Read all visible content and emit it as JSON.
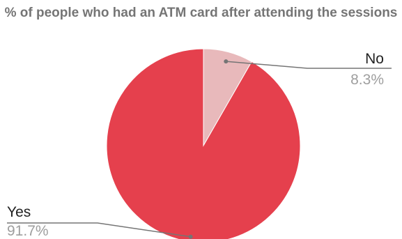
{
  "chart_data": {
    "type": "pie",
    "title": "% of people who had an ATM card after attending the sessions",
    "slices": [
      {
        "label": "No",
        "value": 8.3,
        "value_label": "8.3%",
        "color": "#e8b9bb"
      },
      {
        "label": "Yes",
        "value": 91.7,
        "value_label": "91.7%",
        "color": "#e5404d"
      }
    ],
    "start_angle_deg": 0,
    "direction": "clockwise",
    "legend": "labeled callouts",
    "leader_line_color": "#757575"
  }
}
